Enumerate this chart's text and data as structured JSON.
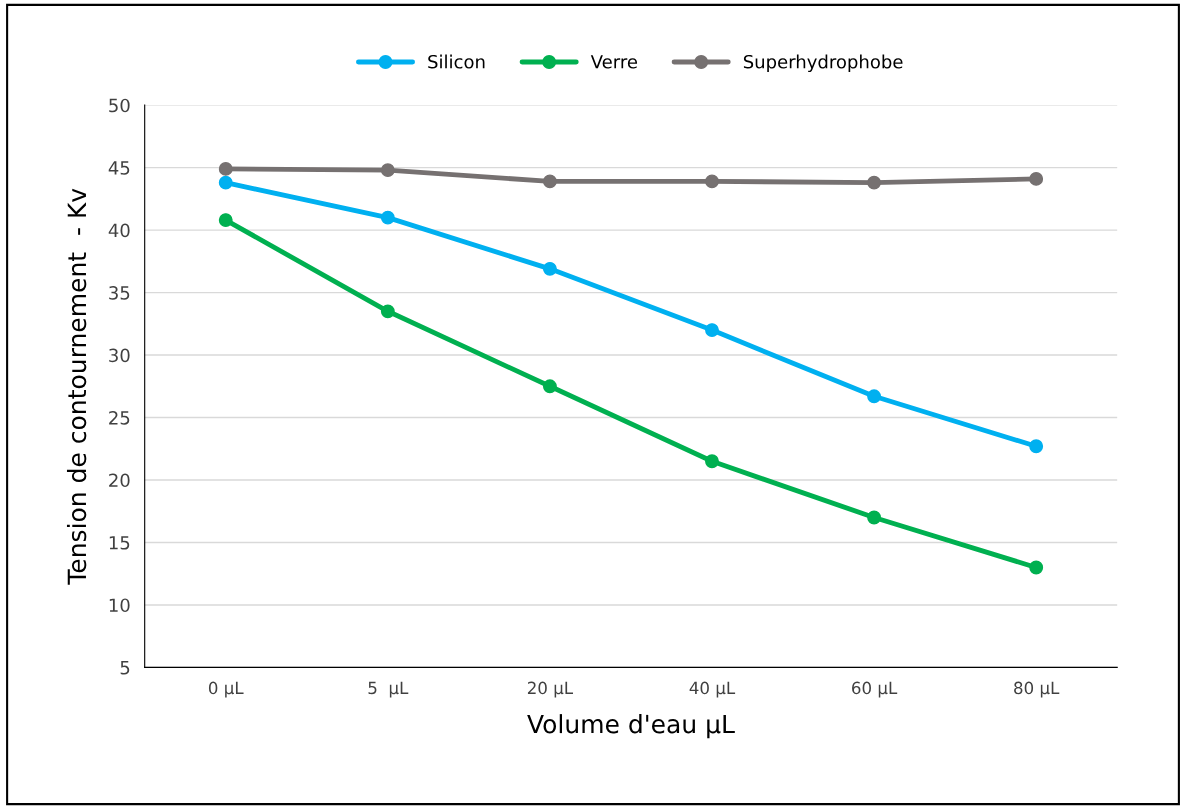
{
  "chart_data": {
    "type": "line",
    "xlabel": "Volume d'eau µL",
    "ylabel": "Tension de contournement  - Kv",
    "categories": [
      "0 µL",
      "5  µL",
      "20 µL",
      "40 µL",
      "60 µL",
      "80 µL"
    ],
    "series": [
      {
        "name": "Silicon",
        "color": "#00b0f0",
        "values": [
          43.8,
          41.0,
          36.9,
          32.0,
          26.7,
          22.7
        ]
      },
      {
        "name": "Verre",
        "color": "#00b050",
        "values": [
          40.8,
          33.5,
          27.5,
          21.5,
          17.0,
          13.0
        ]
      },
      {
        "name": "Superhydrophobe",
        "color": "#767171",
        "values": [
          44.9,
          44.8,
          43.9,
          43.9,
          43.8,
          44.1
        ]
      }
    ],
    "ylim": [
      5,
      50
    ],
    "yticks": [
      5,
      10,
      15,
      20,
      25,
      30,
      35,
      40,
      45,
      50
    ],
    "grid": "y",
    "legend": "top",
    "marker": "circle",
    "line_style": "solid"
  }
}
